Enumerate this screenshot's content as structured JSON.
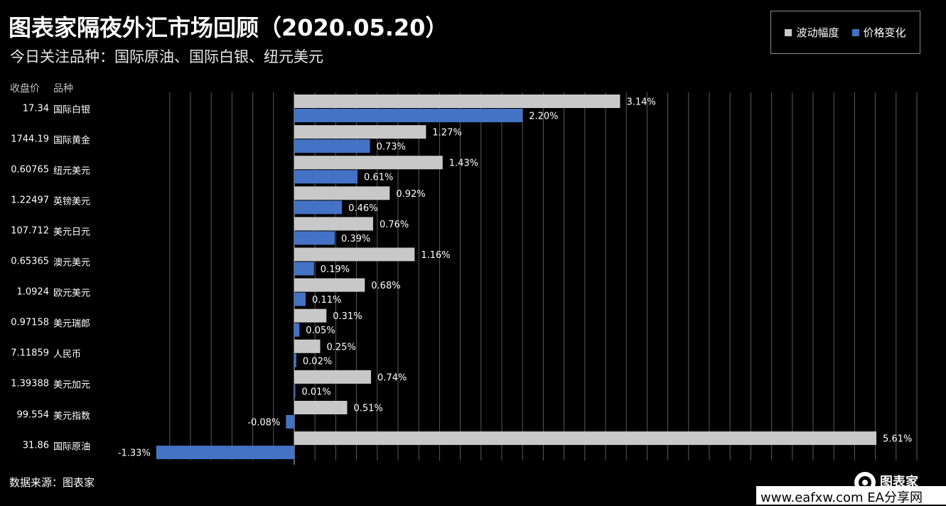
{
  "title": "图表家隔夜外汇市场回顾（2020.05.20）",
  "subtitle": "今日关注品种：国际原油、国际白银、纽元美元",
  "column_headers": {
    "close": "收盘价",
    "name": "品种"
  },
  "source": "数据来源：图表家",
  "brand": {
    "name": "图表家"
  },
  "watermark": "www.eafxw.com EA分享网",
  "colors": {
    "volatility": "#c8c8c8",
    "price_change": "#4472c4",
    "grid": "#5a5a5a"
  },
  "rows": [
    {
      "close": "17.34",
      "name": "国际白银"
    },
    {
      "close": "1744.19",
      "name": "国际黄金"
    },
    {
      "close": "0.60765",
      "name": "纽元美元"
    },
    {
      "close": "1.22497",
      "name": "英镑美元"
    },
    {
      "close": "107.712",
      "name": "美元日元"
    },
    {
      "close": "0.65365",
      "name": "澳元美元"
    },
    {
      "close": "1.0924",
      "name": "欧元美元"
    },
    {
      "close": "0.97158",
      "name": "美元瑞郎"
    },
    {
      "close": "7.11859",
      "name": "人民币"
    },
    {
      "close": "1.39388",
      "name": "美元加元"
    },
    {
      "close": "99.554",
      "name": "美元指数"
    },
    {
      "close": "31.86",
      "name": "国际原油"
    }
  ],
  "chart_data": {
    "type": "bar",
    "orientation": "horizontal",
    "title": "图表家隔夜外汇市场回顾（2020.05.20）",
    "subtitle": "今日关注品种：国际原油、国际白银、纽元美元",
    "categories": [
      "国际白银",
      "国际黄金",
      "纽元美元",
      "英镑美元",
      "美元日元",
      "澳元美元",
      "欧元美元",
      "美元瑞郎",
      "人民币",
      "美元加元",
      "美元指数",
      "国际原油"
    ],
    "series": [
      {
        "name": "波动幅度",
        "values": [
          3.14,
          1.27,
          1.43,
          0.92,
          0.76,
          1.16,
          0.68,
          0.31,
          0.25,
          0.74,
          0.51,
          5.61
        ],
        "labels": [
          "3.14%",
          "1.27%",
          "1.43%",
          "0.92%",
          "0.76%",
          "1.16%",
          "0.68%",
          "0.31%",
          "0.25%",
          "0.74%",
          "0.51%",
          "5.61%"
        ]
      },
      {
        "name": "价格变化",
        "values": [
          2.2,
          0.73,
          0.61,
          0.46,
          0.39,
          0.19,
          0.11,
          0.05,
          0.02,
          0.01,
          -0.08,
          -1.33
        ],
        "labels": [
          "2.20%",
          "0.73%",
          "0.61%",
          "0.46%",
          "0.39%",
          "0.19%",
          "0.11%",
          "0.05%",
          "0.02%",
          "0.01%",
          "-0.08%",
          "-1.33%"
        ]
      }
    ],
    "xlim": [
      -1.4,
      6.0
    ],
    "unit": "%",
    "grid": true,
    "legend_position": "top-right"
  }
}
